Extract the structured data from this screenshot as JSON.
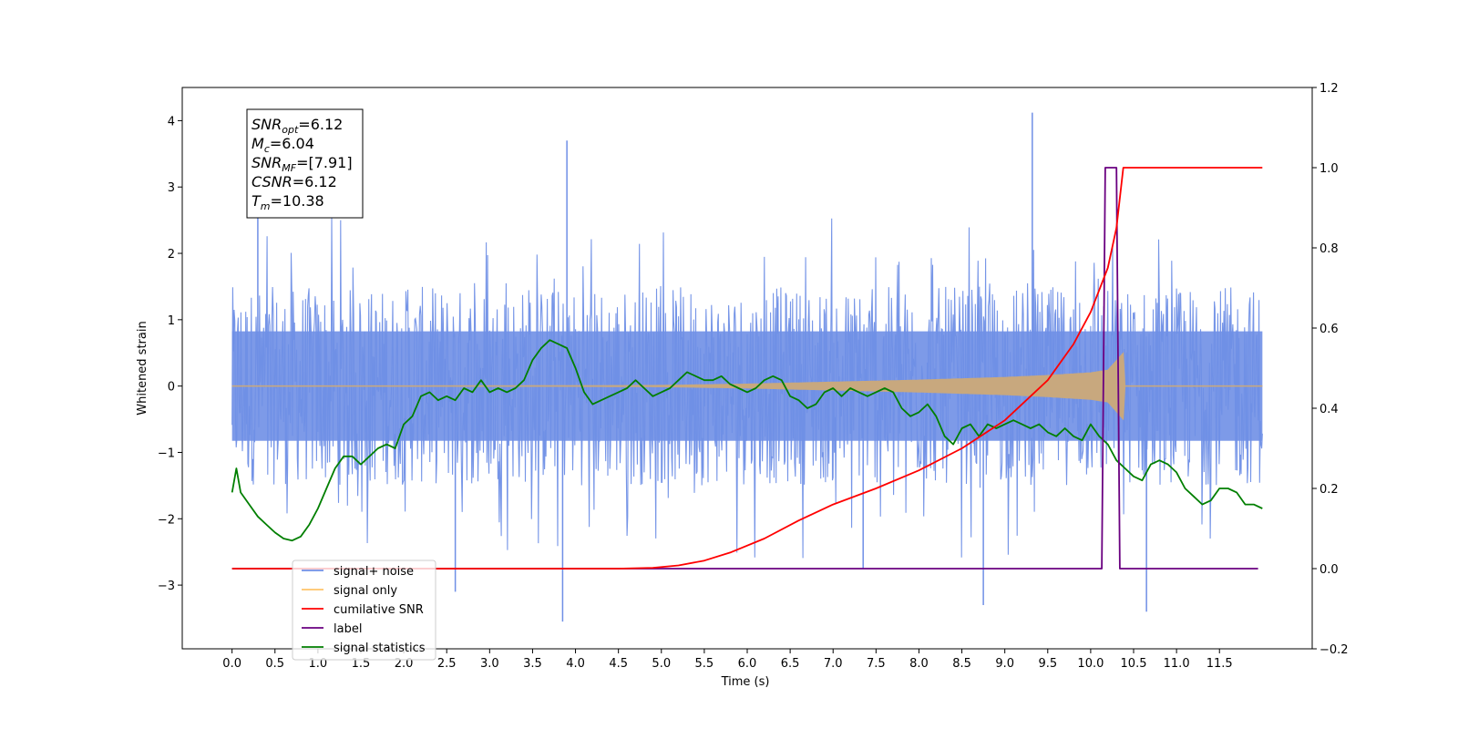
{
  "chart_data": {
    "type": "line",
    "title": "",
    "xlabel": "Time (s)",
    "ylabel": "Whitened strain",
    "ylabel_right": "",
    "xlim": [
      -0.58,
      12.58
    ],
    "ylim": [
      -3.96,
      4.5
    ],
    "ylim_right": [
      -0.2,
      1.2
    ],
    "x_ticks": [
      "0.0",
      "0.5",
      "1.0",
      "1.5",
      "2.0",
      "2.5",
      "3.0",
      "3.5",
      "4.0",
      "4.5",
      "5.0",
      "5.5",
      "6.0",
      "6.5",
      "7.0",
      "7.5",
      "8.0",
      "8.5",
      "9.0",
      "9.5",
      "10.0",
      "10.5",
      "11.0",
      "11.5"
    ],
    "y_ticks_left": [
      "−3",
      "−2",
      "−1",
      "0",
      "1",
      "2",
      "3",
      "4"
    ],
    "y_ticks_right": [
      "−0.2",
      "0.0",
      "0.2",
      "0.4",
      "0.6",
      "0.8",
      "1.0",
      "1.2"
    ],
    "grid": false,
    "legend_position": "bottom-left",
    "annotation": [
      {
        "base": "SNR",
        "sub": "opt",
        "value": "=6.12"
      },
      {
        "base": "M",
        "sub": "c",
        "value": "=6.04"
      },
      {
        "base": "SNR",
        "sub": "MF",
        "value": "=[7.91]"
      },
      {
        "base": "CSNR",
        "sub": "",
        "value": "=6.12"
      },
      {
        "base": "T",
        "sub": "m",
        "value": "=10.38"
      }
    ],
    "series": [
      {
        "name": "signal+ noise",
        "axis": "left",
        "color": "#6f8fe6",
        "band": {
          "x_range": [
            0.0,
            12.0
          ],
          "inner_amplitude": 1.5,
          "outer_amplitude": 2.6
        },
        "spikes": [
          {
            "x": 0.3,
            "y": 2.6
          },
          {
            "x": 2.6,
            "y": -3.1
          },
          {
            "x": 3.85,
            "y": -3.55
          },
          {
            "x": 3.9,
            "y": 3.7
          },
          {
            "x": 8.75,
            "y": -3.3
          },
          {
            "x": 9.32,
            "y": 4.12
          },
          {
            "x": 10.65,
            "y": -3.4
          },
          {
            "x": 7.35,
            "y": -2.75
          }
        ]
      },
      {
        "name": "signal only",
        "axis": "left",
        "color": "#c8a87e",
        "envelope": {
          "x": [
            0,
            4,
            5,
            6,
            7,
            8,
            9,
            9.5,
            10,
            10.2,
            10.38,
            10.4,
            12.0
          ],
          "amp": [
            0.0,
            0.005,
            0.01,
            0.03,
            0.06,
            0.09,
            0.13,
            0.16,
            0.2,
            0.24,
            0.5,
            0.0,
            0.0
          ]
        }
      },
      {
        "name": "cumilative SNR",
        "axis": "right",
        "color": "#ff0000",
        "x": [
          0,
          4.5,
          4.9,
          5.2,
          5.5,
          5.8,
          6.2,
          6.6,
          7.0,
          7.5,
          8.0,
          8.5,
          9.0,
          9.5,
          9.8,
          10.0,
          10.2,
          10.3,
          10.38,
          12.0
        ],
        "y": [
          0.0,
          0.0,
          0.002,
          0.008,
          0.02,
          0.04,
          0.075,
          0.12,
          0.16,
          0.2,
          0.245,
          0.3,
          0.37,
          0.47,
          0.56,
          0.64,
          0.75,
          0.85,
          1.0,
          1.0
        ]
      },
      {
        "name": "label",
        "axis": "right",
        "color": "#6a0080",
        "x": [
          0,
          10.13,
          10.17,
          10.3,
          10.34,
          11.95
        ],
        "y": [
          0,
          0,
          1,
          1,
          0,
          0
        ]
      },
      {
        "name": "signal statistics",
        "axis": "right",
        "color": "#007f00",
        "x": [
          0.0,
          0.05,
          0.1,
          0.2,
          0.3,
          0.4,
          0.5,
          0.6,
          0.7,
          0.8,
          0.9,
          1.0,
          1.1,
          1.2,
          1.3,
          1.4,
          1.5,
          1.6,
          1.7,
          1.8,
          1.9,
          2.0,
          2.1,
          2.2,
          2.3,
          2.4,
          2.5,
          2.6,
          2.7,
          2.8,
          2.9,
          3.0,
          3.1,
          3.2,
          3.3,
          3.4,
          3.5,
          3.6,
          3.7,
          3.8,
          3.9,
          4.0,
          4.1,
          4.2,
          4.3,
          4.4,
          4.5,
          4.6,
          4.7,
          4.8,
          4.9,
          5.0,
          5.1,
          5.2,
          5.3,
          5.4,
          5.5,
          5.6,
          5.7,
          5.8,
          5.9,
          6.0,
          6.1,
          6.2,
          6.3,
          6.4,
          6.5,
          6.6,
          6.7,
          6.8,
          6.9,
          7.0,
          7.1,
          7.2,
          7.3,
          7.4,
          7.5,
          7.6,
          7.7,
          7.8,
          7.9,
          8.0,
          8.1,
          8.2,
          8.3,
          8.4,
          8.5,
          8.6,
          8.7,
          8.8,
          8.9,
          9.0,
          9.1,
          9.2,
          9.3,
          9.4,
          9.5,
          9.6,
          9.7,
          9.8,
          9.9,
          10.0,
          10.1,
          10.2,
          10.3,
          10.4,
          10.5,
          10.6,
          10.7,
          10.8,
          10.9,
          11.0,
          11.1,
          11.2,
          11.3,
          11.4,
          11.5,
          11.6,
          11.7,
          11.8,
          11.9,
          12.0
        ],
        "y": [
          0.19,
          0.25,
          0.19,
          0.16,
          0.13,
          0.11,
          0.09,
          0.075,
          0.07,
          0.08,
          0.11,
          0.15,
          0.2,
          0.25,
          0.28,
          0.28,
          0.26,
          0.28,
          0.3,
          0.31,
          0.3,
          0.36,
          0.38,
          0.43,
          0.44,
          0.42,
          0.43,
          0.42,
          0.45,
          0.44,
          0.47,
          0.44,
          0.45,
          0.44,
          0.45,
          0.47,
          0.52,
          0.55,
          0.57,
          0.56,
          0.55,
          0.5,
          0.44,
          0.41,
          0.42,
          0.43,
          0.44,
          0.45,
          0.47,
          0.45,
          0.43,
          0.44,
          0.45,
          0.47,
          0.49,
          0.48,
          0.47,
          0.47,
          0.48,
          0.46,
          0.45,
          0.44,
          0.45,
          0.47,
          0.48,
          0.47,
          0.43,
          0.42,
          0.4,
          0.41,
          0.44,
          0.45,
          0.43,
          0.45,
          0.44,
          0.43,
          0.44,
          0.45,
          0.44,
          0.4,
          0.38,
          0.39,
          0.41,
          0.38,
          0.33,
          0.31,
          0.35,
          0.36,
          0.33,
          0.36,
          0.35,
          0.36,
          0.37,
          0.36,
          0.35,
          0.36,
          0.34,
          0.33,
          0.35,
          0.33,
          0.32,
          0.36,
          0.33,
          0.31,
          0.27,
          0.25,
          0.23,
          0.22,
          0.26,
          0.27,
          0.26,
          0.24,
          0.2,
          0.18,
          0.16,
          0.17,
          0.2,
          0.2,
          0.19,
          0.16,
          0.16,
          0.15
        ]
      }
    ]
  }
}
